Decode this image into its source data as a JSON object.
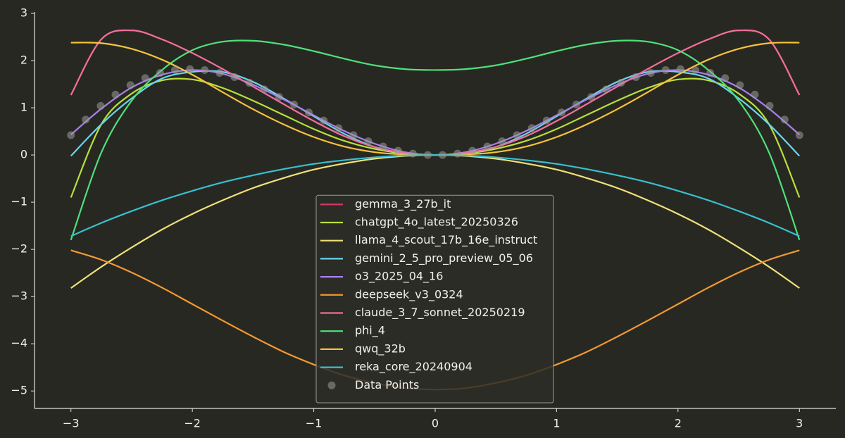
{
  "chart_data": {
    "type": "line",
    "x": [
      -3,
      -2.75,
      -2.5,
      -2.25,
      -2,
      -1.75,
      -1.5,
      -1.25,
      -1,
      -0.75,
      -0.5,
      -0.25,
      0,
      0.25,
      0.5,
      0.75,
      1,
      1.25,
      1.5,
      1.75,
      2,
      2.25,
      2.5,
      2.75,
      3
    ],
    "series": [
      {
        "name": "gemma_3_27b_it",
        "color": "#d63a6a",
        "values": [
          1.27,
          2.45,
          2.64,
          2.45,
          2.16,
          1.82,
          1.45,
          1.08,
          0.72,
          0.4,
          0.17,
          0.04,
          0,
          0.04,
          0.17,
          0.4,
          0.72,
          1.08,
          1.45,
          1.82,
          2.16,
          2.45,
          2.64,
          2.45,
          1.27
        ]
      },
      {
        "name": "chatgpt_4o_latest_20250326",
        "color": "#b8e03a",
        "values": [
          -0.9,
          0.65,
          1.3,
          1.58,
          1.6,
          1.42,
          1.15,
          0.85,
          0.55,
          0.3,
          0.13,
          0.03,
          0,
          0.03,
          0.13,
          0.3,
          0.55,
          0.85,
          1.15,
          1.42,
          1.6,
          1.58,
          1.3,
          0.65,
          -0.9
        ]
      },
      {
        "name": "llama_4_scout_17b_16e_instruct",
        "color": "#f0e07a",
        "values": [
          -2.82,
          -2.37,
          -1.96,
          -1.58,
          -1.25,
          -0.96,
          -0.7,
          -0.49,
          -0.31,
          -0.18,
          -0.08,
          -0.02,
          0,
          -0.02,
          -0.08,
          -0.18,
          -0.31,
          -0.49,
          -0.7,
          -0.96,
          -1.25,
          -1.58,
          -1.96,
          -2.37,
          -2.82
        ]
      },
      {
        "name": "gemini_2_5_pro_preview_05_06",
        "color": "#6ad4ee",
        "values": [
          -0.02,
          0.65,
          1.2,
          1.62,
          1.76,
          1.76,
          1.55,
          1.2,
          0.82,
          0.45,
          0.17,
          0.04,
          0,
          0.04,
          0.17,
          0.45,
          0.82,
          1.2,
          1.55,
          1.76,
          1.76,
          1.62,
          1.2,
          0.65,
          -0.02
        ]
      },
      {
        "name": "o3_2025_04_16",
        "color": "#a880f0",
        "values": [
          0.43,
          0.98,
          1.43,
          1.7,
          1.8,
          1.72,
          1.49,
          1.18,
          0.84,
          0.51,
          0.24,
          0.06,
          0,
          0.06,
          0.24,
          0.51,
          0.84,
          1.18,
          1.49,
          1.72,
          1.8,
          1.7,
          1.43,
          0.98,
          0.43
        ]
      },
      {
        "name": "deepseek_v3_0324",
        "color": "#f29a35",
        "values": [
          -2.02,
          -2.22,
          -2.49,
          -2.81,
          -3.16,
          -3.51,
          -3.85,
          -4.17,
          -4.44,
          -4.67,
          -4.83,
          -4.94,
          -4.97,
          -4.94,
          -4.83,
          -4.67,
          -4.44,
          -4.17,
          -3.85,
          -3.51,
          -3.16,
          -2.81,
          -2.49,
          -2.22,
          -2.02
        ]
      },
      {
        "name": "claude_3_7_sonnet_20250219",
        "color": "#f06e9c",
        "values": [
          1.27,
          2.45,
          2.64,
          2.45,
          2.16,
          1.82,
          1.45,
          1.08,
          0.72,
          0.4,
          0.17,
          0.04,
          0,
          0.04,
          0.17,
          0.4,
          0.72,
          1.08,
          1.45,
          1.82,
          2.16,
          2.45,
          2.64,
          2.45,
          1.27
        ]
      },
      {
        "name": "phi_4",
        "color": "#4ee27a",
        "values": [
          -1.8,
          0.05,
          1.15,
          1.8,
          2.22,
          2.4,
          2.42,
          2.34,
          2.2,
          2.04,
          1.9,
          1.82,
          1.8,
          1.82,
          1.9,
          2.04,
          2.2,
          2.34,
          2.42,
          2.4,
          2.22,
          1.8,
          1.15,
          0.05,
          -1.8
        ]
      },
      {
        "name": "qwq_32b",
        "color": "#f7c33c",
        "values": [
          2.38,
          2.37,
          2.25,
          2.02,
          1.7,
          1.33,
          0.97,
          0.65,
          0.38,
          0.18,
          0.06,
          0.01,
          0,
          0.01,
          0.06,
          0.18,
          0.38,
          0.65,
          0.97,
          1.33,
          1.7,
          2.02,
          2.25,
          2.37,
          2.38
        ]
      },
      {
        "name": "reka_core_20240904",
        "color": "#38c0d0",
        "values": [
          -1.72,
          -1.44,
          -1.19,
          -0.96,
          -0.76,
          -0.58,
          -0.43,
          -0.3,
          -0.19,
          -0.11,
          -0.05,
          -0.01,
          0,
          -0.01,
          -0.05,
          -0.11,
          -0.19,
          -0.3,
          -0.43,
          -0.58,
          -0.76,
          -0.96,
          -1.19,
          -1.44,
          -1.72
        ]
      },
      {
        "name": "Data Points",
        "type": "scatter",
        "color": "#9a9a9a",
        "x": [
          -3,
          -2.878,
          -2.755,
          -2.633,
          -2.51,
          -2.388,
          -2.265,
          -2.143,
          -2.02,
          -1.898,
          -1.776,
          -1.653,
          -1.531,
          -1.408,
          -1.286,
          -1.163,
          -1.041,
          -0.918,
          -0.796,
          -0.673,
          -0.551,
          -0.429,
          -0.306,
          -0.184,
          -0.061,
          0.061,
          0.184,
          0.306,
          0.429,
          0.551,
          0.673,
          0.796,
          0.918,
          1.041,
          1.163,
          1.286,
          1.408,
          1.531,
          1.653,
          1.776,
          1.898,
          2.02,
          2.143,
          2.265,
          2.388,
          2.51,
          2.633,
          2.755,
          2.878,
          3
        ],
        "values": [
          0.42,
          0.75,
          1.04,
          1.28,
          1.48,
          1.63,
          1.74,
          1.8,
          1.82,
          1.8,
          1.74,
          1.65,
          1.53,
          1.39,
          1.23,
          1.07,
          0.9,
          0.73,
          0.57,
          0.42,
          0.29,
          0.18,
          0.09,
          0.03,
          0,
          0,
          0.03,
          0.09,
          0.18,
          0.29,
          0.42,
          0.57,
          0.73,
          0.9,
          1.07,
          1.23,
          1.39,
          1.53,
          1.65,
          1.74,
          1.8,
          1.82,
          1.8,
          1.74,
          1.63,
          1.48,
          1.28,
          1.04,
          0.75,
          0.42
        ]
      }
    ],
    "xlim": [
      -3.3,
      3.3
    ],
    "ylim": [
      -5.37,
      3.03
    ],
    "xticks": [
      {
        "value": -3,
        "label": "−3"
      },
      {
        "value": -2,
        "label": "−2"
      },
      {
        "value": -1,
        "label": "−1"
      },
      0,
      1,
      2,
      3
    ],
    "yticks": [
      {
        "value": -5,
        "label": "−5"
      },
      {
        "value": -4,
        "label": "−4"
      },
      {
        "value": -3,
        "label": "−3"
      },
      {
        "value": -2,
        "label": "−2"
      },
      {
        "value": -1,
        "label": "−1"
      },
      0,
      1,
      2,
      3
    ],
    "grid": false,
    "legend": "lower center"
  }
}
